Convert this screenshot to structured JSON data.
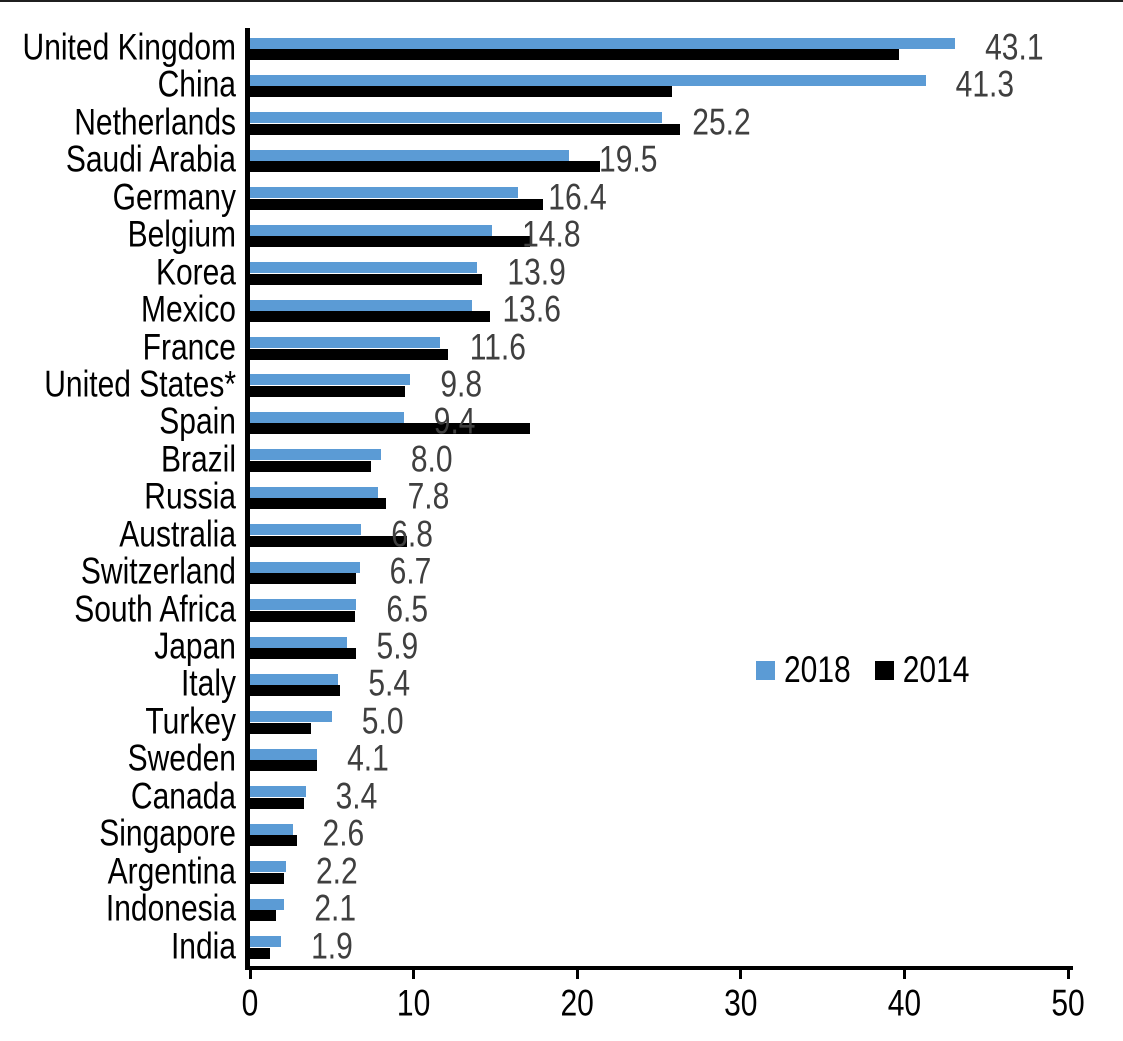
{
  "chart_data": {
    "type": "bar",
    "orientation": "horizontal",
    "title": "",
    "xlabel": "",
    "ylabel": "",
    "xlim": [
      0,
      50
    ],
    "x_ticks": [
      0,
      10,
      20,
      30,
      40,
      50
    ],
    "grid": false,
    "legend_position": "center-right",
    "categories": [
      "United Kingdom",
      "China",
      "Netherlands",
      "Saudi Arabia",
      "Germany",
      "Belgium",
      "Korea",
      "Mexico",
      "France",
      "United States*",
      "Spain",
      "Brazil",
      "Russia",
      "Australia",
      "Switzerland",
      "South Africa",
      "Japan",
      "Italy",
      "Turkey",
      "Sweden",
      "Canada",
      "Singapore",
      "Argentina",
      "Indonesia",
      "India"
    ],
    "series": [
      {
        "name": "2018",
        "color": "#5B9BD5",
        "values": [
          43.1,
          41.3,
          25.2,
          19.5,
          16.4,
          14.8,
          13.9,
          13.6,
          11.6,
          9.8,
          9.4,
          8.0,
          7.8,
          6.8,
          6.7,
          6.5,
          5.9,
          5.4,
          5.0,
          4.1,
          3.4,
          2.6,
          2.2,
          2.1,
          1.9
        ]
      },
      {
        "name": "2014",
        "color": "#000000",
        "values": [
          39.7,
          25.8,
          26.3,
          21.4,
          17.9,
          17.1,
          14.2,
          14.7,
          12.1,
          9.5,
          17.1,
          7.4,
          8.3,
          9.6,
          6.5,
          6.4,
          6.5,
          5.5,
          3.7,
          4.1,
          3.3,
          2.9,
          2.1,
          1.6,
          1.2
        ]
      }
    ],
    "data_labels": {
      "labeled_series": "2018",
      "color": "#3F3F3F",
      "values": [
        "43.1",
        "41.3",
        "25.2",
        "19.5",
        "16.4",
        "14.8",
        "13.9",
        "13.6",
        "11.6",
        "9.8",
        "9.4",
        "8.0",
        "7.8",
        "6.8",
        "6.7",
        "6.5",
        "5.9",
        "5.4",
        "5.0",
        "4.1",
        "3.4",
        "2.6",
        "2.2",
        "2.1",
        "1.9"
      ]
    }
  },
  "legend": {
    "items": [
      {
        "label": "2018",
        "color": "#5B9BD5"
      },
      {
        "label": "2014",
        "color": "#000000"
      }
    ]
  }
}
